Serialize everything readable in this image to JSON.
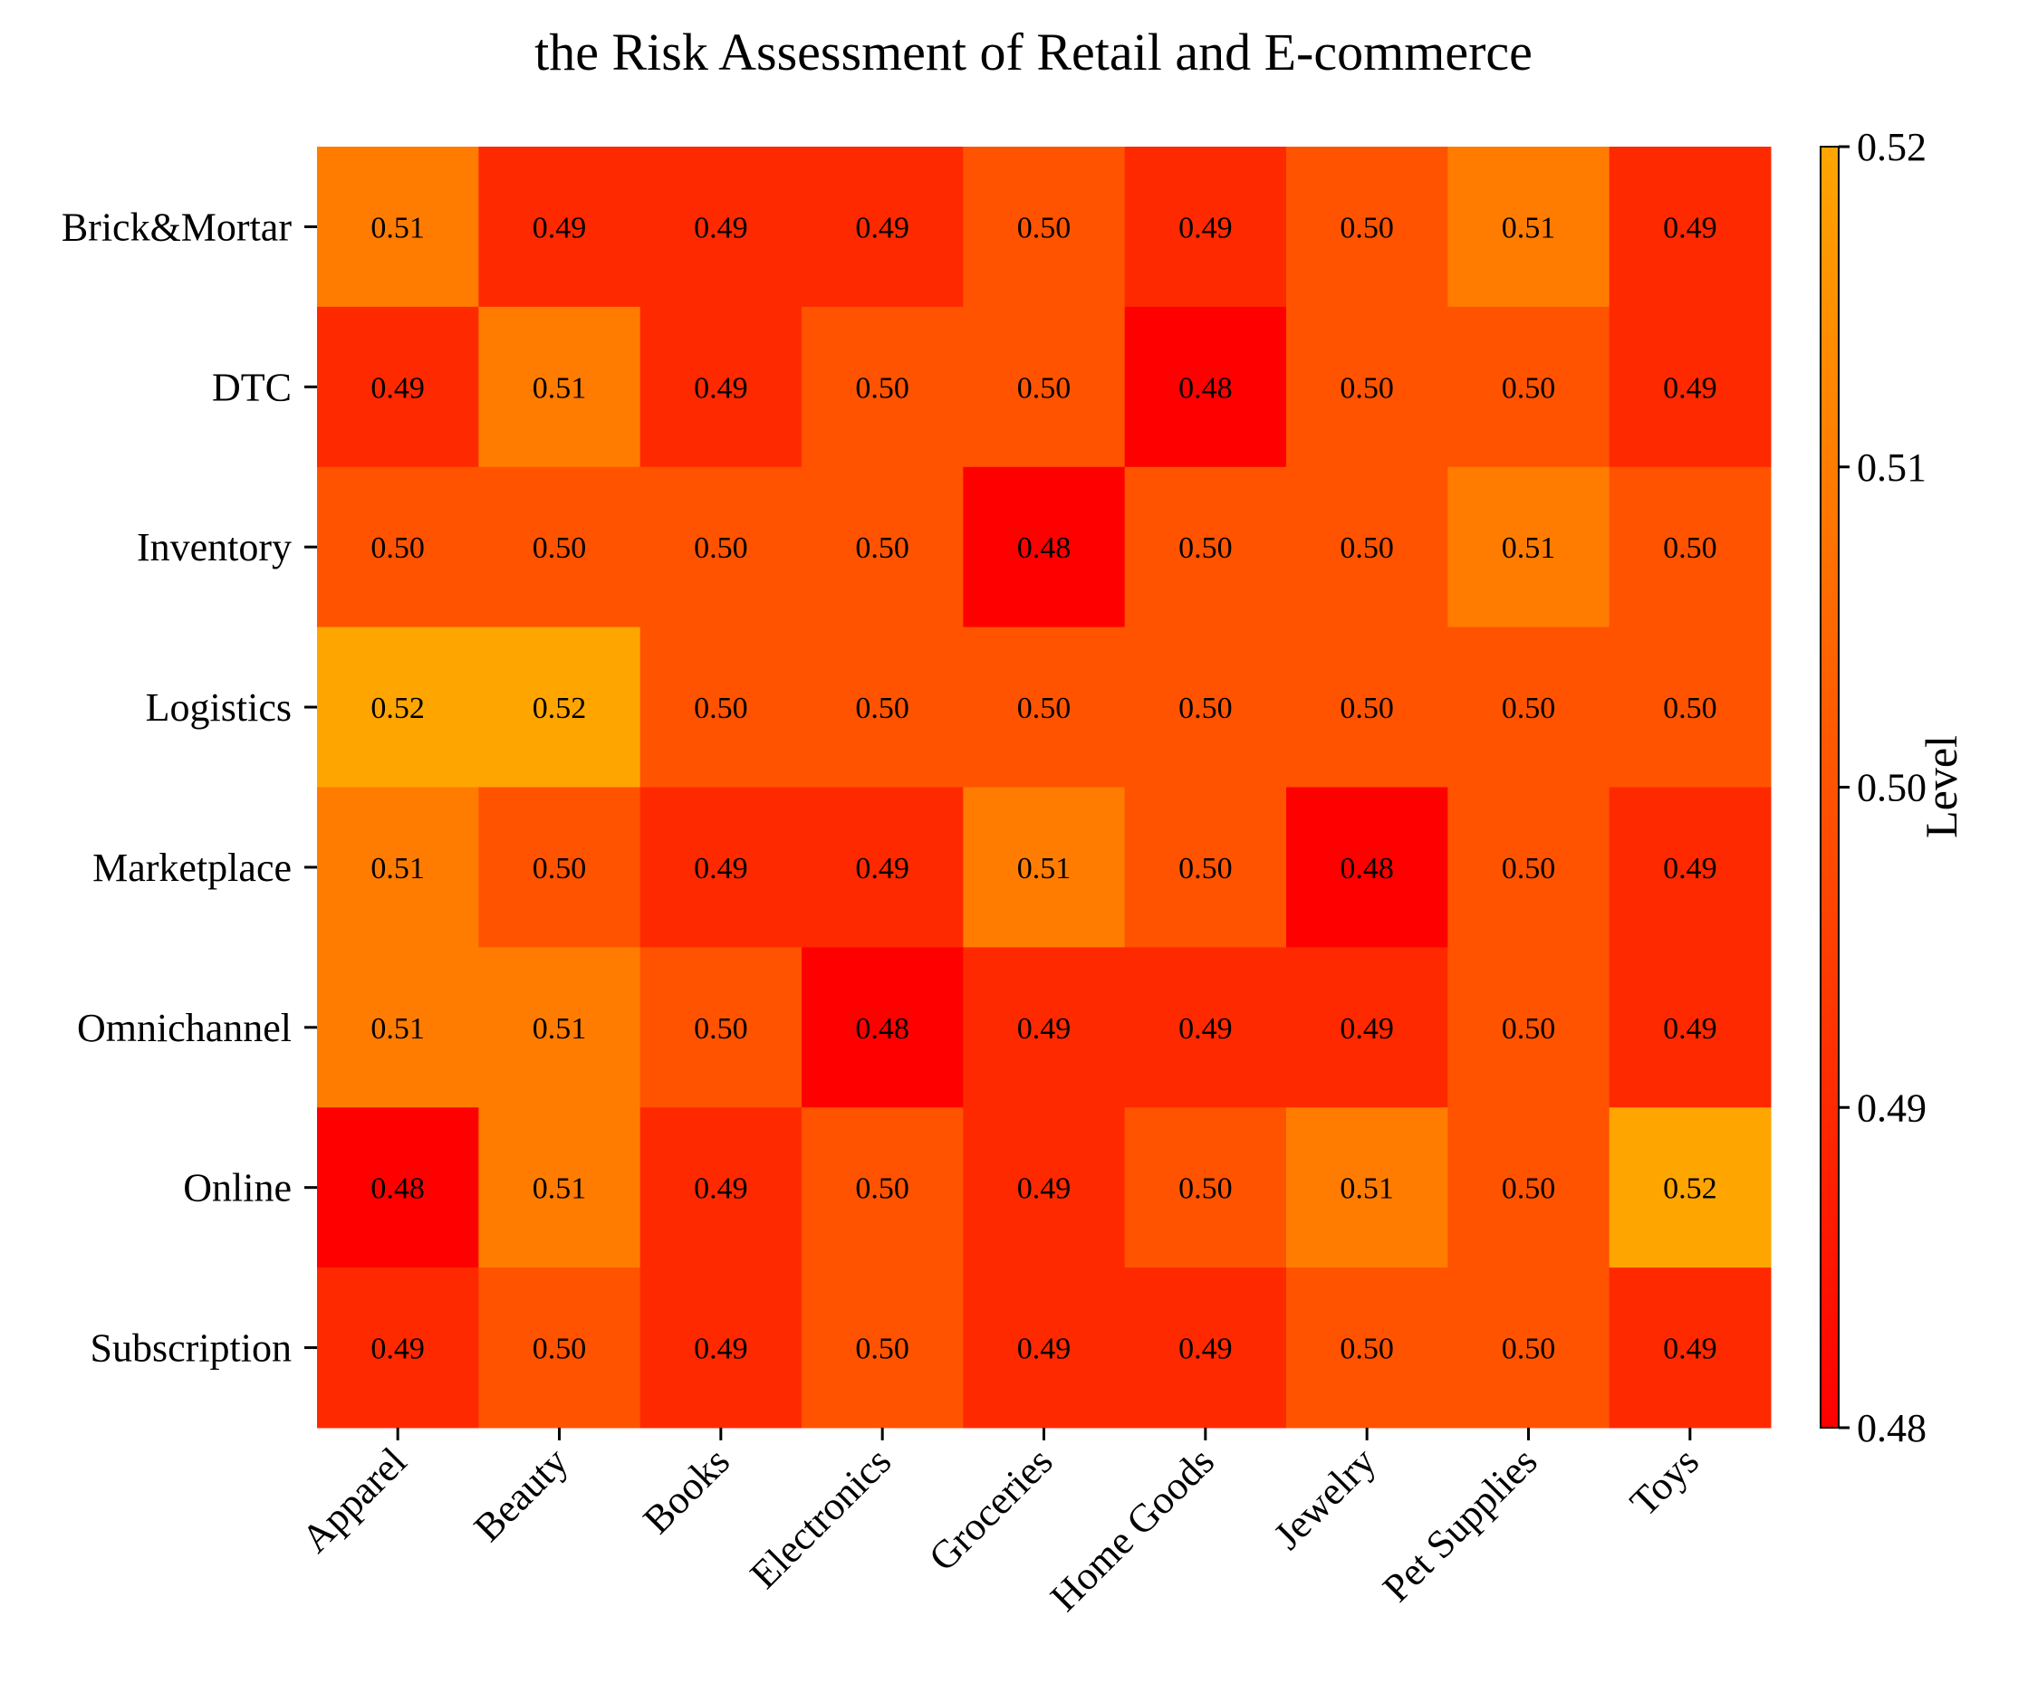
{
  "chart_data": {
    "type": "heatmap",
    "title": "the Risk Assessment of Retail and E-commerce",
    "x_categories": [
      "Apparel",
      "Beauty",
      "Books",
      "Electronics",
      "Groceries",
      "Home Goods",
      "Jewelry",
      "Pet Supplies",
      "Toys"
    ],
    "y_categories": [
      "Brick&Mortar",
      "DTC",
      "Inventory",
      "Logistics",
      "Marketplace",
      "Omnichannel",
      "Online",
      "Subscription"
    ],
    "values": [
      [
        0.51,
        0.49,
        0.49,
        0.49,
        0.5,
        0.49,
        0.5,
        0.51,
        0.49
      ],
      [
        0.49,
        0.51,
        0.49,
        0.5,
        0.5,
        0.48,
        0.5,
        0.5,
        0.49
      ],
      [
        0.5,
        0.5,
        0.5,
        0.5,
        0.48,
        0.5,
        0.5,
        0.51,
        0.5
      ],
      [
        0.52,
        0.52,
        0.5,
        0.5,
        0.5,
        0.5,
        0.5,
        0.5,
        0.5
      ],
      [
        0.51,
        0.5,
        0.49,
        0.49,
        0.51,
        0.5,
        0.48,
        0.5,
        0.49
      ],
      [
        0.51,
        0.51,
        0.5,
        0.48,
        0.49,
        0.49,
        0.49,
        0.5,
        0.49
      ],
      [
        0.48,
        0.51,
        0.49,
        0.5,
        0.49,
        0.5,
        0.51,
        0.5,
        0.52
      ],
      [
        0.49,
        0.5,
        0.49,
        0.5,
        0.49,
        0.49,
        0.5,
        0.5,
        0.49
      ]
    ],
    "cell_labels": [
      [
        "0.51",
        "0.49",
        "0.49",
        "0.49",
        "0.50",
        "0.49",
        "0.50",
        "0.51",
        "0.49"
      ],
      [
        "0.49",
        "0.51",
        "0.49",
        "0.50",
        "0.50",
        "0.48",
        "0.50",
        "0.50",
        "0.49"
      ],
      [
        "0.50",
        "0.50",
        "0.50",
        "0.50",
        "0.48",
        "0.50",
        "0.50",
        "0.51",
        "0.50"
      ],
      [
        "0.52",
        "0.52",
        "0.50",
        "0.50",
        "0.50",
        "0.50",
        "0.50",
        "0.50",
        "0.50"
      ],
      [
        "0.51",
        "0.50",
        "0.49",
        "0.49",
        "0.51",
        "0.50",
        "0.48",
        "0.50",
        "0.49"
      ],
      [
        "0.51",
        "0.51",
        "0.50",
        "0.48",
        "0.49",
        "0.49",
        "0.49",
        "0.50",
        "0.49"
      ],
      [
        "0.48",
        "0.51",
        "0.49",
        "0.50",
        "0.49",
        "0.50",
        "0.51",
        "0.50",
        "0.52"
      ],
      [
        "0.49",
        "0.50",
        "0.49",
        "0.50",
        "0.49",
        "0.49",
        "0.50",
        "0.50",
        "0.49"
      ]
    ],
    "colorbar": {
      "label": "Level",
      "range": [
        0.48,
        0.52
      ],
      "ticks": [
        0.48,
        0.49,
        0.5,
        0.51,
        0.52
      ],
      "tick_labels": [
        "0.48",
        "0.49",
        "0.50",
        "0.51",
        "0.52"
      ],
      "colors": [
        "#ff0000",
        "#ffa500"
      ]
    },
    "grid": false
  }
}
